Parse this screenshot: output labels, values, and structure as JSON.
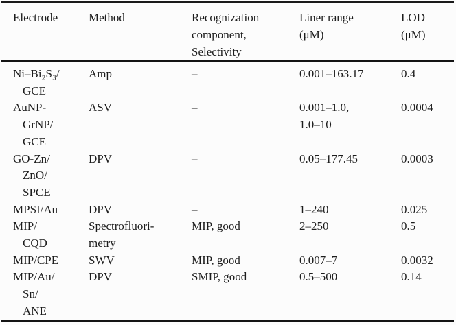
{
  "table": {
    "columns": [
      {
        "label": "Electrode"
      },
      {
        "label": "Method"
      },
      {
        "label": "Recognization\ncomponent,\nSelectivity"
      },
      {
        "label": "Liner range\n(μM)"
      },
      {
        "label": "LOD\n(μM)"
      }
    ],
    "rows": [
      {
        "electrode": "Ni–Bi₂S₃/\nGCE",
        "method": "Amp",
        "recognition": "–",
        "linear_range": "0.001–163.17",
        "lod": "0.4"
      },
      {
        "electrode": "AuNP-\nGrNP/\nGCE",
        "method": "ASV",
        "recognition": "–",
        "linear_range": "0.001–1.0,\n1.0–10",
        "lod": "0.0004"
      },
      {
        "electrode": "GO-Zn/\nZnO/\nSPCE",
        "method": "DPV",
        "recognition": "–",
        "linear_range": "0.05–177.45",
        "lod": "0.0003"
      },
      {
        "electrode": "MPSI/Au",
        "method": "DPV",
        "recognition": "–",
        "linear_range": "1–240",
        "lod": "0.025"
      },
      {
        "electrode": "MIP/\nCQD",
        "method": "Spectrofluori-\nmetry",
        "recognition": "MIP, good",
        "linear_range": "2–250",
        "lod": "0.5"
      },
      {
        "electrode": "MIP/CPE",
        "method": "SWV",
        "recognition": "MIP, good",
        "linear_range": "0.007–7",
        "lod": "0.0032"
      },
      {
        "electrode": "MIP/Au/\nSn/\nANE",
        "method": "DPV",
        "recognition": "SMIP, good",
        "linear_range": "0.5–500",
        "lod": "0.14"
      }
    ]
  },
  "colors": {
    "text": "#1d1d1d",
    "rule": "#141414",
    "background": "#fcfcfc"
  }
}
